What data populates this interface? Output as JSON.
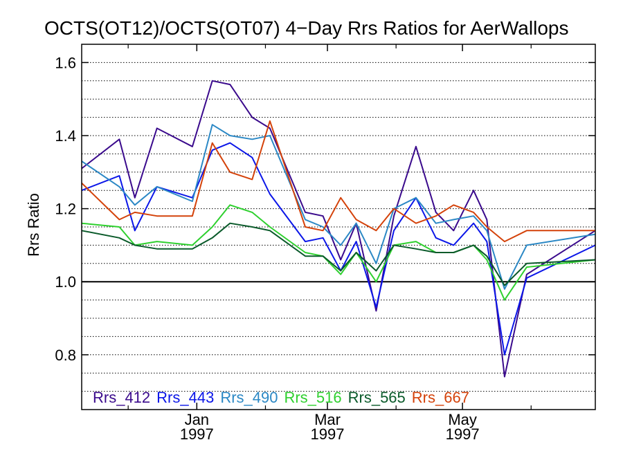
{
  "chart_data": {
    "type": "line",
    "title": "OCTS(OT12)/OCTS(OT07) 4−Day Rrs Ratios for AerWallops",
    "ylabel": "Rrs Ratio",
    "xlabel": "",
    "ylim": [
      0.65,
      1.65
    ],
    "xlim": [
      "1996-11-10",
      "1997-06-30"
    ],
    "y_ticks": [
      "0.8",
      "1.0",
      "1.2",
      "1.4",
      "1.6"
    ],
    "y_tick_values": [
      0.8,
      1.0,
      1.2,
      1.4,
      1.6
    ],
    "y_minor_gridlines": [
      0.7,
      0.75,
      0.8,
      0.85,
      0.9,
      0.95,
      1.05,
      1.1,
      1.15,
      1.2,
      1.25,
      1.3,
      1.35,
      1.4,
      1.45,
      1.5,
      1.55,
      1.6
    ],
    "reference_line": 1.0,
    "grid": true,
    "legend_position": "bottom-left",
    "x_ticks": [
      {
        "date": "1997-01-01",
        "month": "Jan",
        "year": "1997"
      },
      {
        "date": "1997-03-01",
        "month": "Mar",
        "year": "1997"
      },
      {
        "date": "1997-05-01",
        "month": "May",
        "year": "1997"
      }
    ],
    "x_minor_ticks": [
      "1996-12-01",
      "1997-02-01",
      "1997-04-01",
      "1997-06-01"
    ],
    "x": [
      "1996-11-10",
      "1996-11-27",
      "1996-12-04",
      "1996-12-14",
      "1996-12-30",
      "1997-01-08",
      "1997-01-16",
      "1997-01-26",
      "1997-02-03",
      "1997-02-19",
      "1997-02-27",
      "1997-03-07",
      "1997-03-14",
      "1997-03-23",
      "1997-03-31",
      "1997-04-10",
      "1997-04-19",
      "1997-04-27",
      "1997-05-06",
      "1997-05-12",
      "1997-05-20",
      "1997-05-30",
      "1997-06-30"
    ],
    "series": [
      {
        "name": "Rrs_412",
        "color": "#3a0a8c",
        "values": [
          1.31,
          1.39,
          1.23,
          1.42,
          1.37,
          1.55,
          1.54,
          1.45,
          1.42,
          1.19,
          1.18,
          1.06,
          1.16,
          0.92,
          1.18,
          1.37,
          1.19,
          1.14,
          1.25,
          1.17,
          0.74,
          1.02,
          1.14
        ]
      },
      {
        "name": "Rrs_443",
        "color": "#0b16e8",
        "values": [
          1.25,
          1.29,
          1.14,
          1.26,
          1.23,
          1.36,
          1.38,
          1.34,
          1.24,
          1.11,
          1.12,
          1.03,
          1.11,
          0.93,
          1.14,
          1.23,
          1.12,
          1.1,
          1.16,
          1.11,
          0.8,
          1.01,
          1.1
        ]
      },
      {
        "name": "Rrs_490",
        "color": "#2b88c5",
        "values": [
          1.33,
          1.26,
          1.21,
          1.26,
          1.22,
          1.43,
          1.4,
          1.39,
          1.4,
          1.17,
          1.15,
          1.1,
          1.16,
          1.05,
          1.2,
          1.23,
          1.16,
          1.17,
          1.18,
          1.14,
          0.98,
          1.1,
          1.13
        ]
      },
      {
        "name": "Rrs_516",
        "color": "#2ed02e",
        "values": [
          1.16,
          1.15,
          1.1,
          1.11,
          1.1,
          1.15,
          1.21,
          1.19,
          1.15,
          1.08,
          1.07,
          1.02,
          1.08,
          1.0,
          1.1,
          1.11,
          1.08,
          1.08,
          1.1,
          1.06,
          0.95,
          1.04,
          1.06
        ]
      },
      {
        "name": "Rrs_565",
        "color": "#0a5a2a",
        "values": [
          1.14,
          1.12,
          1.1,
          1.09,
          1.09,
          1.12,
          1.16,
          1.15,
          1.14,
          1.07,
          1.07,
          1.03,
          1.08,
          1.03,
          1.1,
          1.09,
          1.08,
          1.08,
          1.1,
          1.07,
          0.99,
          1.05,
          1.06
        ]
      },
      {
        "name": "Rrs_667",
        "color": "#d4420a",
        "values": [
          1.27,
          1.17,
          1.19,
          1.18,
          1.18,
          1.38,
          1.3,
          1.28,
          1.44,
          1.15,
          1.14,
          1.23,
          1.17,
          1.14,
          1.2,
          1.16,
          1.18,
          1.21,
          1.19,
          1.15,
          1.11,
          1.14,
          1.14
        ]
      }
    ]
  }
}
